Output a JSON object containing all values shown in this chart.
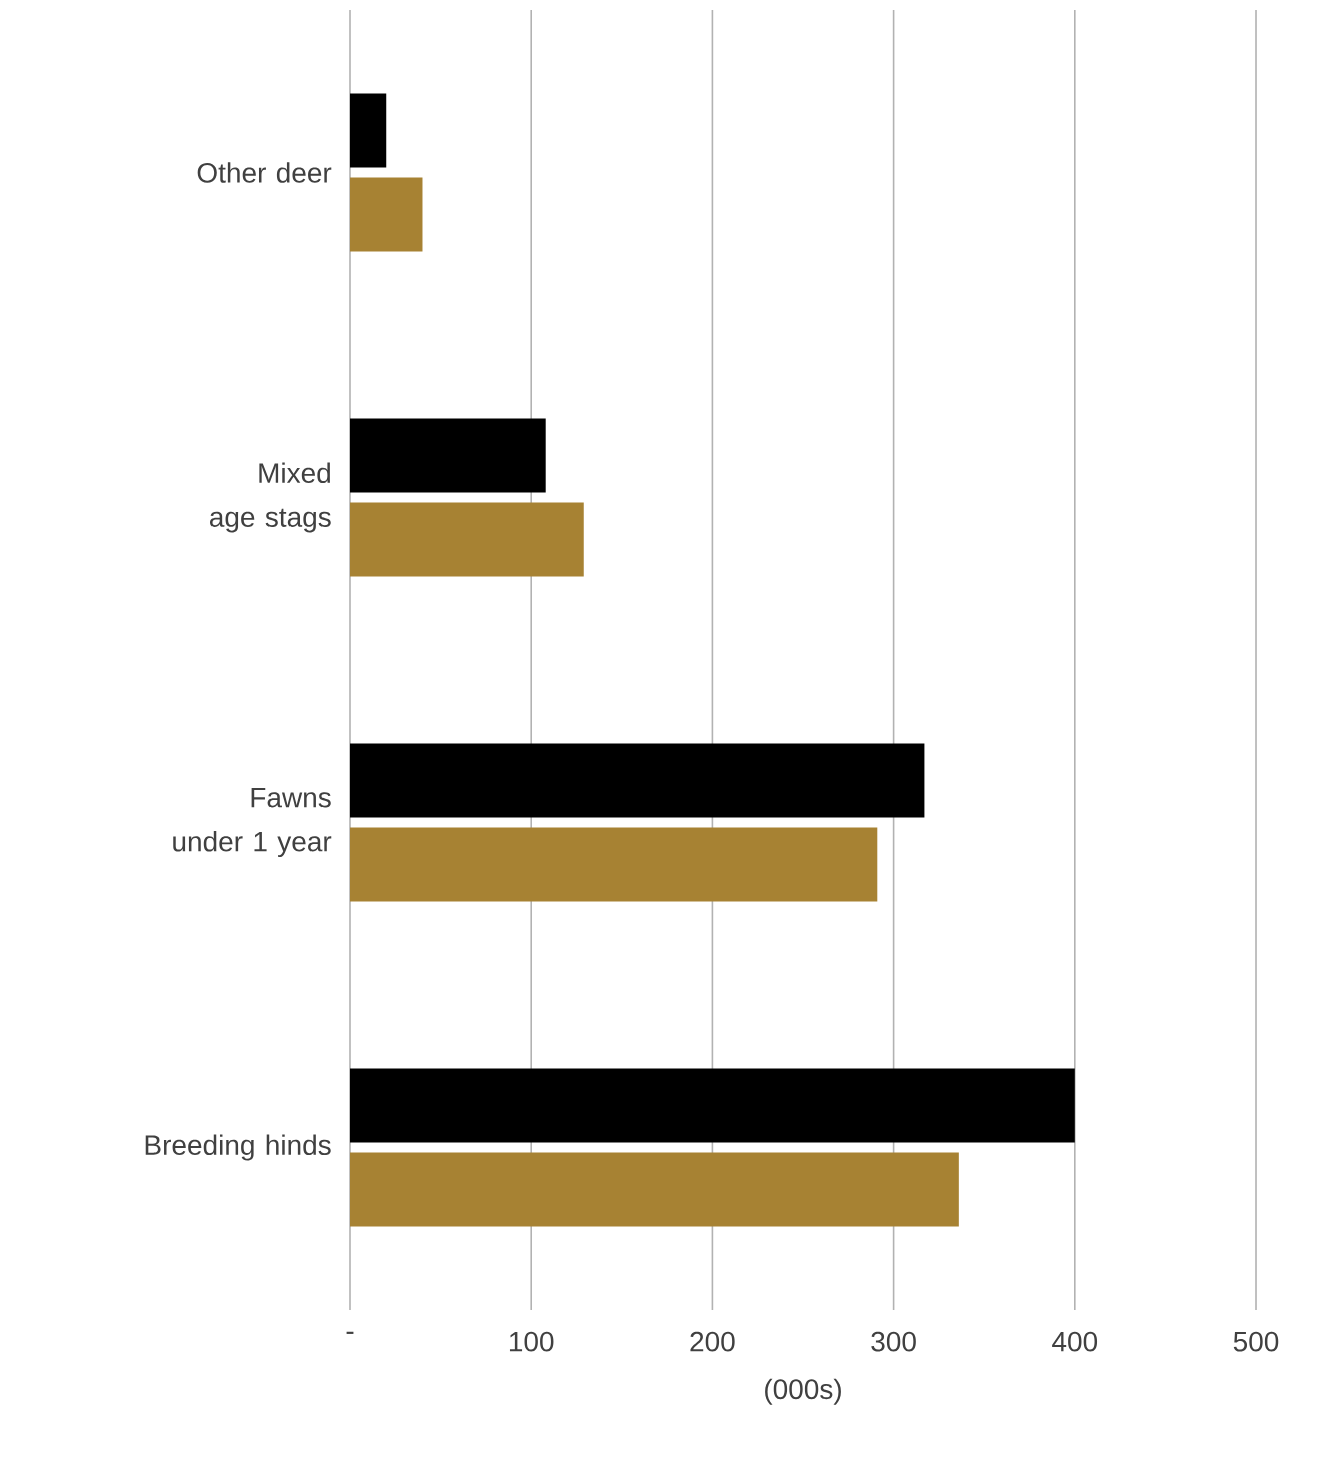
{
  "chart_data": {
    "type": "bar",
    "orientation": "horizontal",
    "xlabel": "(000s)",
    "categories": [
      "Other deer",
      "Mixed age stags",
      "Fawns under 1 year",
      "Breeding hinds"
    ],
    "series": [
      {
        "color": "#000000",
        "values": [
          20,
          108,
          317,
          400
        ]
      },
      {
        "color": "#a78233",
        "values": [
          40,
          129,
          291,
          336
        ]
      }
    ],
    "xlim": [
      0,
      500
    ],
    "xticks": [
      {
        "value": 0,
        "label": "-"
      },
      100,
      200,
      300,
      400,
      500
    ],
    "grid": "x"
  }
}
